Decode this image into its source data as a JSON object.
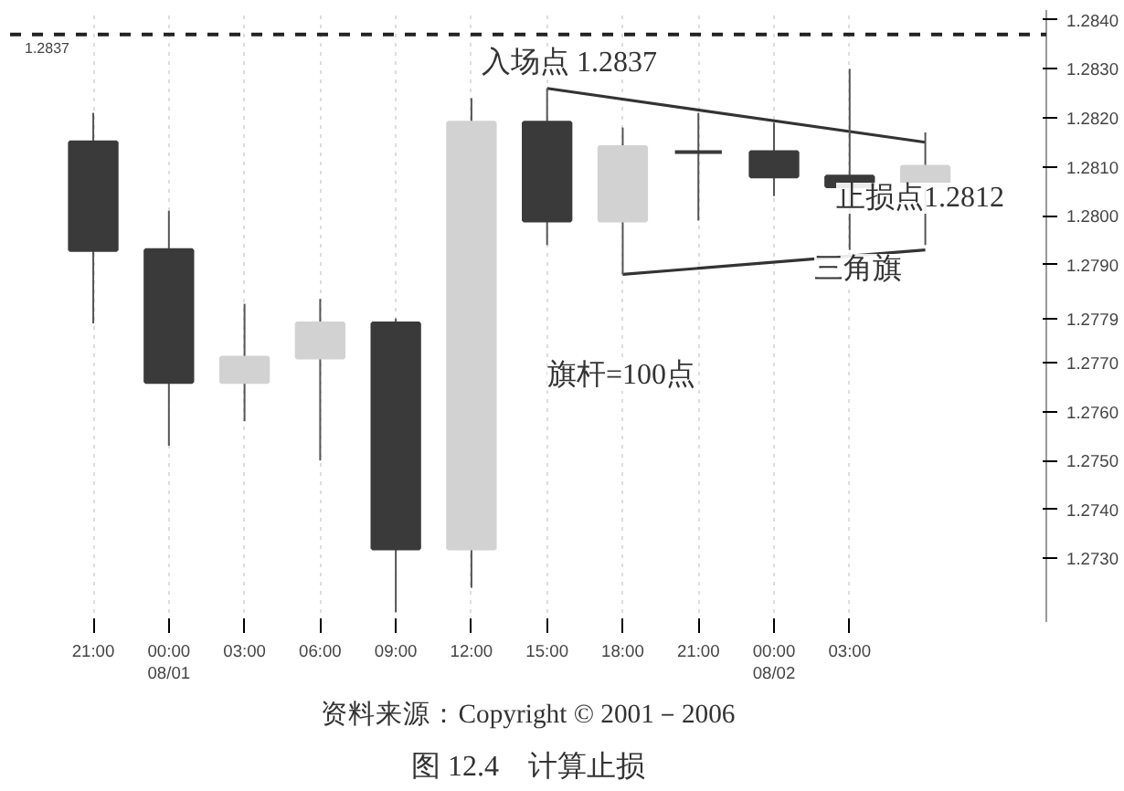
{
  "chart_data": {
    "type": "candlestick",
    "title": "图 12.4　计算止损",
    "categories": [
      "21:00",
      "00:00\n08/01",
      "03:00",
      "06:00",
      "09:00",
      "12:00",
      "15:00",
      "18:00",
      "21:00",
      "00:00\n08/02",
      "03:00",
      null
    ],
    "ohlc": [
      [
        1.2815,
        1.2821,
        1.2778,
        1.2793
      ],
      [
        1.2793,
        1.2801,
        1.2753,
        1.2766
      ],
      [
        1.2766,
        1.2782,
        1.2758,
        1.2771
      ],
      [
        1.2771,
        1.2783,
        1.275,
        1.2778
      ],
      [
        1.2778,
        1.2779,
        1.2719,
        1.2732
      ],
      [
        1.2732,
        1.2824,
        1.2724,
        1.2819
      ],
      [
        1.2819,
        1.2826,
        1.2794,
        1.2799
      ],
      [
        1.2799,
        1.2818,
        1.2788,
        1.2814
      ],
      [
        1.2813,
        1.2821,
        1.2799,
        1.2813
      ],
      [
        1.2813,
        1.2819,
        1.2804,
        1.2808
      ],
      [
        1.2808,
        1.283,
        1.2793,
        1.2806
      ],
      [
        1.2806,
        1.2817,
        1.2794,
        1.281
      ]
    ],
    "colors": [
      "#3a3a3a",
      "#3a3a3a",
      "#d2d2d2",
      "#d2d2d2",
      "#3a3a3a",
      "#d2d2d2",
      "#3a3a3a",
      "#d2d2d2",
      "#3a3a3a",
      "#3a3a3a",
      "#3a3a3a",
      "#d2d2d2"
    ],
    "series": [
      {
        "type": "line",
        "color": "#333333",
        "values": [
          null,
          null,
          null,
          null,
          null,
          null,
          1.2826,
          null,
          null,
          null,
          null,
          1.2815
        ]
      },
      {
        "type": "line",
        "color": "#333333",
        "values": [
          null,
          null,
          null,
          null,
          null,
          null,
          null,
          1.2788,
          null,
          null,
          null,
          1.2793
        ]
      }
    ],
    "ylim": [
      1.2717,
      1.2842
    ],
    "yticks": [
      {
        "value": 1.273,
        "label": "1.2730"
      },
      {
        "value": 1.274,
        "label": "1.2740"
      },
      {
        "value": 1.275,
        "label": "1.2750"
      },
      {
        "value": 1.276,
        "label": "1.2760"
      },
      {
        "value": 1.277,
        "label": "1.2770"
      },
      {
        "value": 1.2779,
        "label": "1.2779"
      },
      {
        "value": 1.279,
        "label": "1.2790"
      },
      {
        "value": 1.28,
        "label": "1.2800"
      },
      {
        "value": 1.281,
        "label": "1.2810"
      },
      {
        "value": 1.282,
        "label": "1.2820"
      },
      {
        "value": 1.283,
        "label": "1.2830"
      },
      {
        "value": 1.284,
        "label": "1.2840"
      }
    ],
    "ref_lines": [
      {
        "axis": "y",
        "value": 1.2837,
        "label": "1.2837",
        "color": "#222222",
        "line_style": "dashed"
      }
    ],
    "annotations": [
      "入场点 1.2837",
      "止损点1.2812",
      "三角旗",
      "旗杆=100点",
      "资料来源：Copyright © 2001－2006"
    ],
    "grid": "x"
  }
}
